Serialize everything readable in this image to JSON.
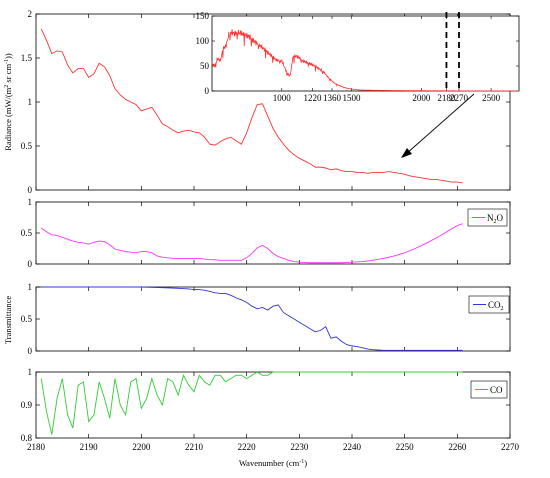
{
  "xlabel_text": "Wavenumber (cm",
  "xlabel_sup": "-1",
  "xlabel_close": ")",
  "x_ticks": [
    2180,
    2190,
    2200,
    2210,
    2220,
    2230,
    2240,
    2250,
    2260,
    2270
  ],
  "ylabel_radiance": {
    "pre": "Radiance (mW/(m",
    "sup1": "2",
    "mid": " sr cm",
    "sup2": "-1",
    "post": "))"
  },
  "ylabel_transmittance": "Transmittance",
  "colors": {
    "radiance": "#ff3333",
    "n2o": "#ff33ff",
    "co2": "#3333dd",
    "co": "#33cc33",
    "axis": "#000000",
    "annotation": "#000000"
  },
  "chart_data": [
    {
      "type": "line",
      "name": "radiance",
      "xlim": [
        2180,
        2270
      ],
      "ylim": [
        0,
        2
      ],
      "y_ticks": [
        0,
        0.5,
        1,
        1.5,
        2
      ],
      "x": [
        2181,
        2182,
        2183,
        2184,
        2185,
        2186,
        2187,
        2188,
        2189,
        2190,
        2191,
        2192,
        2193,
        2194,
        2195,
        2196,
        2197,
        2198,
        2199,
        2200,
        2201,
        2202,
        2203,
        2204,
        2205,
        2206,
        2207,
        2208,
        2209,
        2210,
        2211,
        2212,
        2213,
        2214,
        2215,
        2216,
        2217,
        2218,
        2219,
        2220,
        2221,
        2222,
        2223,
        2224,
        2225,
        2226,
        2227,
        2228,
        2229,
        2230,
        2231,
        2232,
        2233,
        2234,
        2235,
        2236,
        2237,
        2238,
        2239,
        2240,
        2241,
        2242,
        2243,
        2244,
        2245,
        2246,
        2247,
        2248,
        2249,
        2250,
        2251,
        2252,
        2253,
        2254,
        2255,
        2256,
        2257,
        2258,
        2259,
        2260,
        2261
      ],
      "y": [
        1.83,
        1.7,
        1.55,
        1.58,
        1.57,
        1.42,
        1.33,
        1.38,
        1.38,
        1.28,
        1.32,
        1.44,
        1.4,
        1.3,
        1.15,
        1.08,
        1.03,
        1.0,
        0.97,
        0.9,
        0.92,
        0.94,
        0.85,
        0.75,
        0.72,
        0.68,
        0.65,
        0.67,
        0.68,
        0.66,
        0.65,
        0.6,
        0.52,
        0.51,
        0.55,
        0.58,
        0.6,
        0.56,
        0.52,
        0.65,
        0.82,
        0.97,
        0.98,
        0.84,
        0.7,
        0.6,
        0.52,
        0.45,
        0.4,
        0.36,
        0.33,
        0.3,
        0.26,
        0.26,
        0.25,
        0.23,
        0.24,
        0.22,
        0.21,
        0.21,
        0.2,
        0.2,
        0.19,
        0.2,
        0.2,
        0.2,
        0.21,
        0.2,
        0.19,
        0.18,
        0.16,
        0.15,
        0.14,
        0.13,
        0.12,
        0.12,
        0.11,
        0.1,
        0.09,
        0.09,
        0.08
      ]
    },
    {
      "type": "line",
      "name": "inset-radiance",
      "xlim": [
        500,
        2700
      ],
      "ylim": [
        0,
        150
      ],
      "x_ticks": [
        1000,
        1220,
        1360,
        1500,
        2000,
        2180,
        2270,
        2500
      ],
      "y_ticks": [
        0,
        50,
        100,
        150
      ],
      "dashed_markers": [
        2180,
        2270
      ],
      "x": [
        500,
        520,
        540,
        560,
        580,
        600,
        620,
        640,
        660,
        680,
        700,
        720,
        740,
        760,
        780,
        800,
        840,
        880,
        920,
        960,
        1000,
        1040,
        1060,
        1080,
        1100,
        1120,
        1150,
        1200,
        1250,
        1300,
        1340,
        1380,
        1420,
        1460,
        1500,
        1560,
        1650,
        1800,
        2000,
        2180,
        2270,
        2500,
        2700
      ],
      "y": [
        55,
        50,
        65,
        60,
        85,
        90,
        112,
        118,
        115,
        117,
        116,
        114,
        112,
        110,
        105,
        100,
        92,
        82,
        72,
        62,
        60,
        35,
        30,
        68,
        70,
        68,
        60,
        55,
        48,
        38,
        25,
        15,
        10,
        6,
        4,
        2,
        1.5,
        1,
        0.6,
        0.4,
        0.3,
        0.2,
        0.2
      ]
    },
    {
      "type": "line",
      "name": "N2O",
      "xlim": [
        2180,
        2270
      ],
      "ylim": [
        0,
        1
      ],
      "y_ticks": [
        0,
        0.5,
        1
      ],
      "x": [
        2181,
        2182,
        2183,
        2184,
        2185,
        2186,
        2187,
        2188,
        2189,
        2190,
        2191,
        2192,
        2193,
        2194,
        2195,
        2196,
        2197,
        2198,
        2199,
        2200,
        2201,
        2202,
        2203,
        2204,
        2205,
        2206,
        2207,
        2208,
        2209,
        2210,
        2211,
        2212,
        2213,
        2214,
        2215,
        2216,
        2217,
        2218,
        2219,
        2220,
        2221,
        2222,
        2223,
        2224,
        2225,
        2226,
        2227,
        2228,
        2229,
        2230,
        2232,
        2234,
        2236,
        2238,
        2240,
        2242,
        2244,
        2246,
        2248,
        2250,
        2252,
        2254,
        2256,
        2258,
        2260,
        2261
      ],
      "y": [
        0.58,
        0.52,
        0.47,
        0.46,
        0.43,
        0.4,
        0.37,
        0.35,
        0.34,
        0.32,
        0.35,
        0.37,
        0.36,
        0.31,
        0.24,
        0.22,
        0.2,
        0.19,
        0.18,
        0.2,
        0.2,
        0.18,
        0.13,
        0.11,
        0.1,
        0.09,
        0.09,
        0.09,
        0.09,
        0.09,
        0.09,
        0.08,
        0.07,
        0.07,
        0.06,
        0.06,
        0.06,
        0.06,
        0.06,
        0.1,
        0.17,
        0.26,
        0.3,
        0.25,
        0.17,
        0.12,
        0.09,
        0.06,
        0.04,
        0.03,
        0.02,
        0.02,
        0.02,
        0.02,
        0.03,
        0.04,
        0.06,
        0.09,
        0.13,
        0.18,
        0.25,
        0.33,
        0.42,
        0.52,
        0.62,
        0.65
      ]
    },
    {
      "type": "line",
      "name": "CO2",
      "xlim": [
        2180,
        2270
      ],
      "ylim": [
        0,
        1
      ],
      "y_ticks": [
        0,
        0.5,
        1
      ],
      "x": [
        2181,
        2185,
        2190,
        2195,
        2200,
        2204,
        2207,
        2209,
        2210,
        2211,
        2212,
        2213,
        2214,
        2215,
        2216,
        2217,
        2218,
        2219,
        2220,
        2221,
        2222,
        2223,
        2224,
        2225,
        2226,
        2227,
        2228,
        2229,
        2230,
        2231,
        2232,
        2233,
        2234,
        2235,
        2236,
        2237,
        2238,
        2239,
        2240,
        2241,
        2242,
        2243,
        2244,
        2246,
        2248,
        2250,
        2255,
        2261
      ],
      "y": [
        1,
        1,
        1,
        1,
        1,
        0.99,
        0.98,
        0.97,
        0.96,
        0.96,
        0.95,
        0.93,
        0.91,
        0.9,
        0.9,
        0.87,
        0.83,
        0.8,
        0.76,
        0.7,
        0.66,
        0.68,
        0.64,
        0.7,
        0.72,
        0.6,
        0.55,
        0.5,
        0.45,
        0.4,
        0.35,
        0.3,
        0.32,
        0.38,
        0.2,
        0.22,
        0.15,
        0.1,
        0.08,
        0.07,
        0.05,
        0.03,
        0.02,
        0.01,
        0.01,
        0.01,
        0.01,
        0.01
      ]
    },
    {
      "type": "line",
      "name": "CO",
      "xlim": [
        2180,
        2270
      ],
      "ylim": [
        0.8,
        1
      ],
      "y_ticks": [
        0.8,
        0.9,
        1
      ],
      "x": [
        2181,
        2182,
        2183,
        2184,
        2185,
        2186,
        2187,
        2188,
        2189,
        2190,
        2191,
        2192,
        2193,
        2194,
        2195,
        2196,
        2197,
        2198,
        2199,
        2200,
        2201,
        2202,
        2203,
        2204,
        2205,
        2206,
        2207,
        2208,
        2209,
        2210,
        2211,
        2212,
        2213,
        2214,
        2215,
        2216,
        2217,
        2218,
        2219,
        2220,
        2221,
        2222,
        2223,
        2224,
        2225,
        2226,
        2228,
        2230,
        2235,
        2240,
        2245,
        2250,
        2255,
        2261
      ],
      "y": [
        0.98,
        0.88,
        0.81,
        0.92,
        0.98,
        0.87,
        0.83,
        0.96,
        0.97,
        0.85,
        0.87,
        0.97,
        0.92,
        0.86,
        0.98,
        0.9,
        0.87,
        0.97,
        0.98,
        0.89,
        0.92,
        0.98,
        0.93,
        0.9,
        0.98,
        0.97,
        0.93,
        0.99,
        0.96,
        0.94,
        0.99,
        0.97,
        0.96,
        0.99,
        0.99,
        0.97,
        0.98,
        0.99,
        0.99,
        0.98,
        0.99,
        1,
        0.99,
        0.99,
        1,
        1,
        1,
        1,
        1,
        1,
        1,
        1,
        1,
        1
      ]
    }
  ],
  "legends": {
    "n2o": {
      "base": "N",
      "sub": "2",
      "tail": "O"
    },
    "co2": {
      "base": "CO",
      "sub": "2"
    },
    "co": {
      "base": "CO"
    }
  }
}
